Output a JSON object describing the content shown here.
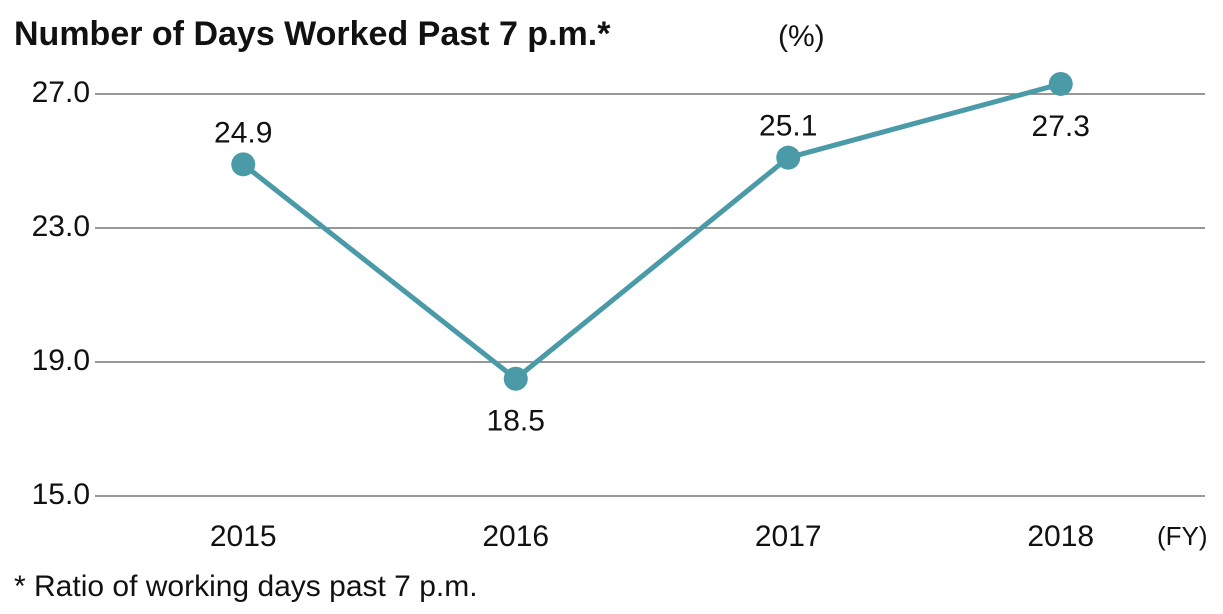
{
  "chart_data": {
    "type": "line",
    "title": "Number of Days Worked Past 7 p.m.*",
    "y_unit": "(%)",
    "x_unit": "(FY)",
    "footnote": "* Ratio of working days past 7 p.m.",
    "categories": [
      "2015",
      "2016",
      "2017",
      "2018"
    ],
    "series": [
      {
        "name": "Ratio of working days past 7 p.m.",
        "color": "#4a9aa8",
        "values": [
          24.9,
          18.5,
          25.1,
          27.3
        ]
      }
    ],
    "ylim": [
      15,
      27
    ],
    "yticks": [
      {
        "value": 15,
        "label": "15.0"
      },
      {
        "value": 19,
        "label": "19.0"
      },
      {
        "value": 23,
        "label": "23.0"
      },
      {
        "value": 27,
        "label": "27.0"
      }
    ],
    "grid": true
  }
}
